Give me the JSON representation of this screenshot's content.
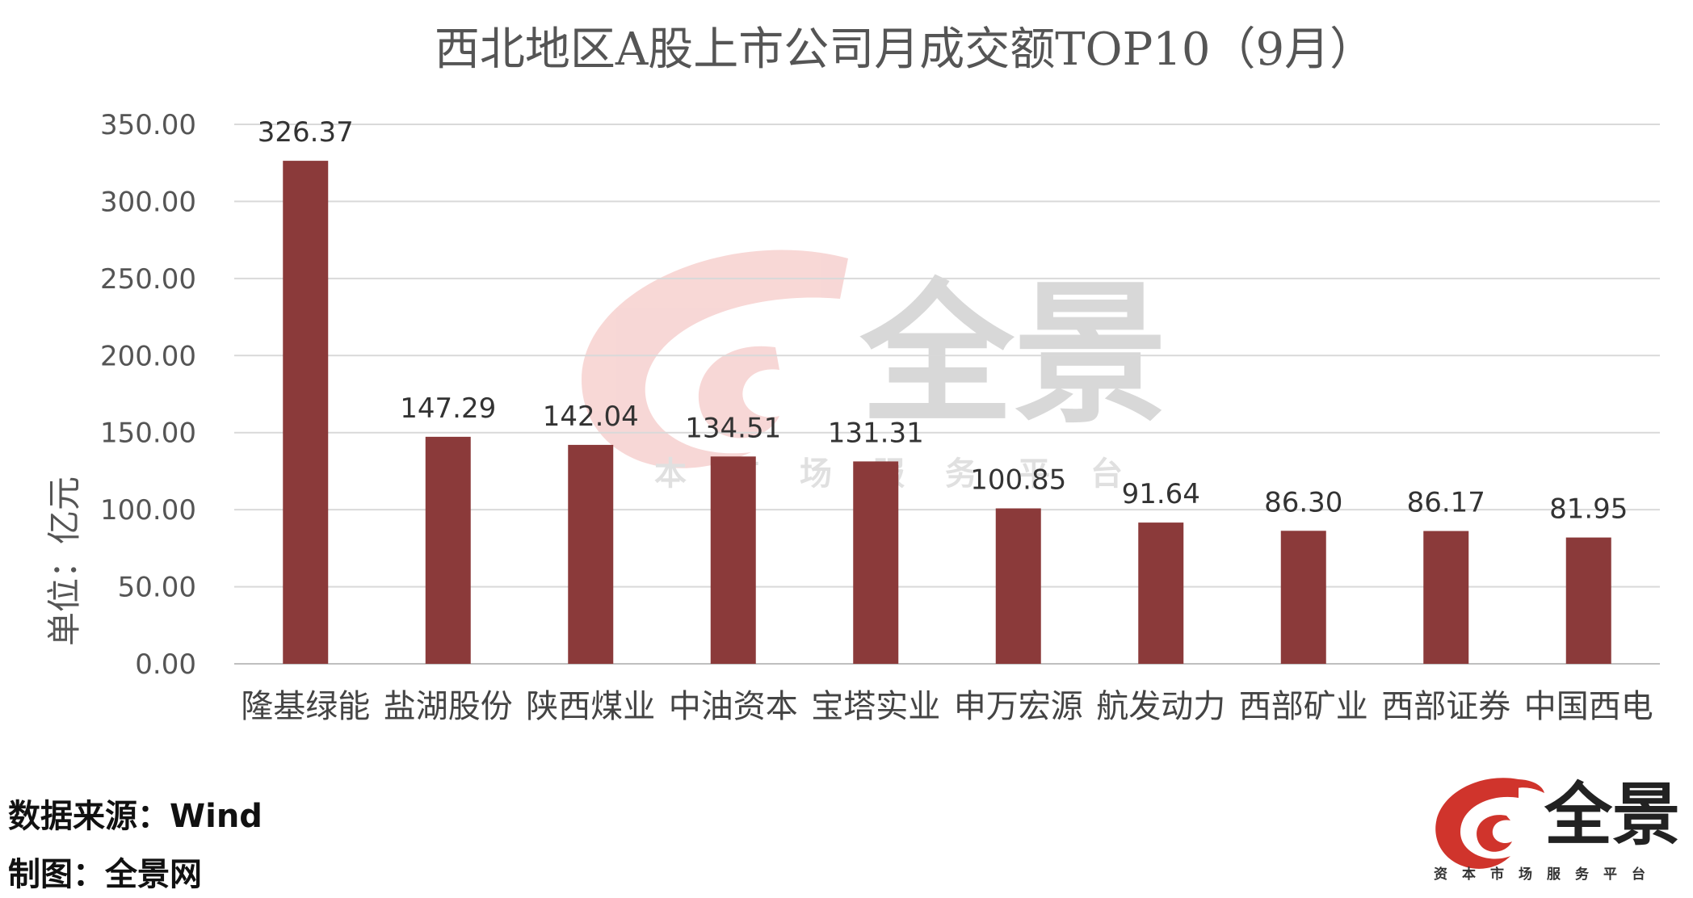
{
  "chart_data": {
    "type": "bar",
    "title": "西北地区A股上市公司月成交额TOP10（9月）",
    "ylabel": "单位：亿元",
    "ylim": [
      0,
      350
    ],
    "yticks": [
      "0.00",
      "50.00",
      "100.00",
      "150.00",
      "200.00",
      "250.00",
      "300.00",
      "350.00"
    ],
    "categories": [
      "隆基绿能",
      "盐湖股份",
      "陕西煤业",
      "中油资本",
      "宝塔实业",
      "申万宏源",
      "航发动力",
      "西部矿业",
      "西部证券",
      "中国西电"
    ],
    "values": [
      326.37,
      147.29,
      142.04,
      134.51,
      131.31,
      100.85,
      91.64,
      86.3,
      86.17,
      81.95
    ],
    "value_labels": [
      "326.37",
      "147.29",
      "142.04",
      "134.51",
      "131.31",
      "100.85",
      "91.64",
      "86.30",
      "86.17",
      "81.95"
    ],
    "bar_color": "#8b3a3a",
    "grid": true,
    "legend": "none"
  },
  "footer": {
    "source": "数据来源：Wind",
    "credit": "制图：全景网"
  },
  "logo": {
    "name": "全景",
    "subtitle": "资本市场服务平台",
    "color": "#d0342c"
  },
  "watermark": {
    "name": "全景",
    "subtitle": "资本市场服务平台",
    "color": "#f2b8b5"
  }
}
